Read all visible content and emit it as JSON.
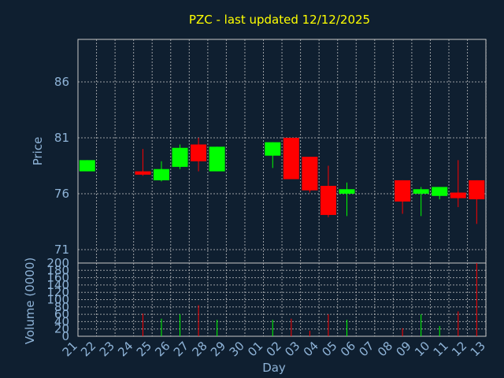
{
  "title": "PZC - last updated 12/12/2025",
  "colors": {
    "background": "#0f1f30",
    "up": "#00ff00",
    "down": "#ff0000",
    "title": "#ffff00",
    "tick": "#8fb4d8",
    "grid": "#c8c8c8"
  },
  "chart_data": [
    {
      "type": "candlestick",
      "ylabel": "Price",
      "ylim": [
        69.8,
        89.8
      ],
      "yticks": [
        "86",
        "81",
        "76",
        "71"
      ],
      "ytick_values": [
        86,
        81,
        76,
        71
      ],
      "grid": true,
      "x": [
        "21",
        "22",
        "23",
        "24",
        "25",
        "26",
        "27",
        "28",
        "29",
        "30",
        "01",
        "02",
        "03",
        "04",
        "05",
        "06",
        "07",
        "08",
        "09",
        "10",
        "11",
        "12",
        "13"
      ],
      "candles": [
        {
          "x": "21",
          "open": 78.0,
          "high": 79.0,
          "low": 78.0,
          "close": 79.0
        },
        {
          "x": "24",
          "open": 78.0,
          "high": 80.0,
          "low": 77.6,
          "close": 77.7
        },
        {
          "x": "25",
          "open": 77.2,
          "high": 78.9,
          "low": 77.1,
          "close": 78.2
        },
        {
          "x": "26",
          "open": 78.4,
          "high": 80.4,
          "low": 78.2,
          "close": 80.1
        },
        {
          "x": "27",
          "open": 80.4,
          "high": 81.0,
          "low": 78.0,
          "close": 78.9
        },
        {
          "x": "28",
          "open": 78.0,
          "high": 80.2,
          "low": 78.0,
          "close": 80.2
        },
        {
          "x": "01",
          "open": 79.4,
          "high": 80.6,
          "low": 78.3,
          "close": 80.6
        },
        {
          "x": "02",
          "open": 81.0,
          "high": 81.0,
          "low": 77.3,
          "close": 77.3
        },
        {
          "x": "03",
          "open": 79.3,
          "high": 79.3,
          "low": 76.1,
          "close": 76.3
        },
        {
          "x": "04",
          "open": 76.7,
          "high": 78.5,
          "low": 73.9,
          "close": 74.1
        },
        {
          "x": "05",
          "open": 76.0,
          "high": 77.0,
          "low": 74.0,
          "close": 76.4
        },
        {
          "x": "08",
          "open": 77.2,
          "high": 77.2,
          "low": 74.2,
          "close": 75.3
        },
        {
          "x": "09",
          "open": 76.0,
          "high": 76.6,
          "low": 74.0,
          "close": 76.4
        },
        {
          "x": "10",
          "open": 75.8,
          "high": 76.6,
          "low": 75.5,
          "close": 76.6
        },
        {
          "x": "11",
          "open": 76.1,
          "high": 79.0,
          "low": 74.8,
          "close": 75.6
        },
        {
          "x": "12",
          "open": 77.2,
          "high": 77.2,
          "low": 73.3,
          "close": 75.5
        }
      ]
    },
    {
      "type": "bar",
      "ylabel": "Volume (0000)",
      "xlabel": "Day",
      "ylim": [
        0,
        200
      ],
      "yticks": [
        "200",
        "180",
        "160",
        "140",
        "120",
        "100",
        "80",
        "60",
        "40",
        "20",
        "0"
      ],
      "ytick_values": [
        200,
        180,
        160,
        140,
        120,
        100,
        80,
        60,
        40,
        20,
        0
      ],
      "grid": true,
      "values": [
        {
          "x": "24",
          "value": 62,
          "direction": "down"
        },
        {
          "x": "25",
          "value": 48,
          "direction": "up"
        },
        {
          "x": "26",
          "value": 60,
          "direction": "up"
        },
        {
          "x": "27",
          "value": 85,
          "direction": "down"
        },
        {
          "x": "28",
          "value": 45,
          "direction": "up"
        },
        {
          "x": "01",
          "value": 45,
          "direction": "up"
        },
        {
          "x": "02",
          "value": 48,
          "direction": "down"
        },
        {
          "x": "03",
          "value": 15,
          "direction": "down"
        },
        {
          "x": "04",
          "value": 60,
          "direction": "down"
        },
        {
          "x": "05",
          "value": 45,
          "direction": "up"
        },
        {
          "x": "08",
          "value": 22,
          "direction": "down"
        },
        {
          "x": "09",
          "value": 60,
          "direction": "up"
        },
        {
          "x": "10",
          "value": 28,
          "direction": "up"
        },
        {
          "x": "11",
          "value": 68,
          "direction": "down"
        },
        {
          "x": "12",
          "value": 200,
          "direction": "down"
        }
      ]
    }
  ]
}
